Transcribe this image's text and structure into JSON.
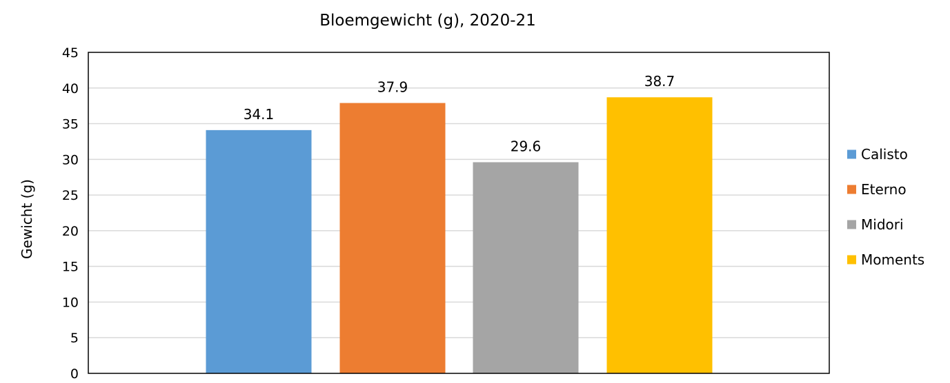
{
  "chart_data": {
    "type": "bar",
    "title": "Bloemgewicht (g), 2020-21",
    "xlabel": "",
    "ylabel": "Gewicht (g)",
    "ylim": [
      0,
      45
    ],
    "yticks": [
      0,
      5,
      10,
      15,
      20,
      25,
      30,
      35,
      40,
      45
    ],
    "grid": true,
    "legend_position": "right",
    "series": [
      {
        "name": "Calisto",
        "value": 34.1,
        "label": "34.1",
        "color": "#5B9BD5"
      },
      {
        "name": "Eterno",
        "value": 37.9,
        "label": "37.9",
        "color": "#ED7D31"
      },
      {
        "name": "Midori",
        "value": 29.6,
        "label": "29.6",
        "color": "#A5A5A5"
      },
      {
        "name": "Moments",
        "value": 38.7,
        "label": "38.7",
        "color": "#FFC000"
      }
    ]
  }
}
